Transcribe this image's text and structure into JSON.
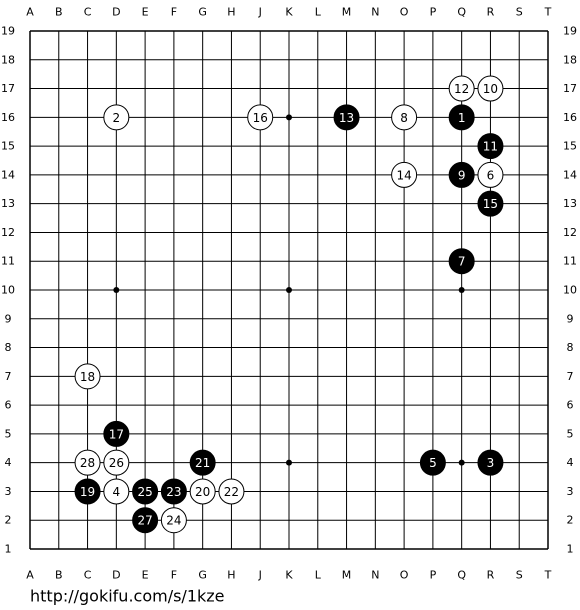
{
  "board": {
    "columns": [
      "A",
      "B",
      "C",
      "D",
      "E",
      "F",
      "G",
      "H",
      "J",
      "K",
      "L",
      "M",
      "N",
      "O",
      "P",
      "Q",
      "R",
      "S",
      "T"
    ],
    "rows": [
      19,
      18,
      17,
      16,
      15,
      14,
      13,
      12,
      11,
      10,
      9,
      8,
      7,
      6,
      5,
      4,
      3,
      2,
      1
    ],
    "star_points": [
      "D16",
      "K16",
      "Q16",
      "D10",
      "K10",
      "Q10",
      "D4",
      "K4",
      "Q4"
    ],
    "stones": [
      {
        "label": "1",
        "color": "black",
        "point": "Q16"
      },
      {
        "label": "2",
        "color": "white",
        "point": "D16"
      },
      {
        "label": "3",
        "color": "black",
        "point": "R4"
      },
      {
        "label": "4",
        "color": "white",
        "point": "D3"
      },
      {
        "label": "5",
        "color": "black",
        "point": "P4"
      },
      {
        "label": "6",
        "color": "white",
        "point": "R14"
      },
      {
        "label": "7",
        "color": "black",
        "point": "Q11"
      },
      {
        "label": "8",
        "color": "white",
        "point": "O16"
      },
      {
        "label": "9",
        "color": "black",
        "point": "Q14"
      },
      {
        "label": "10",
        "color": "white",
        "point": "R17"
      },
      {
        "label": "11",
        "color": "black",
        "point": "R15"
      },
      {
        "label": "12",
        "color": "white",
        "point": "Q17"
      },
      {
        "label": "13",
        "color": "black",
        "point": "M16"
      },
      {
        "label": "14",
        "color": "white",
        "point": "O14"
      },
      {
        "label": "15",
        "color": "black",
        "point": "R13"
      },
      {
        "label": "16",
        "color": "white",
        "point": "J16"
      },
      {
        "label": "17",
        "color": "black",
        "point": "D5"
      },
      {
        "label": "18",
        "color": "white",
        "point": "C7"
      },
      {
        "label": "19",
        "color": "black",
        "point": "C3"
      },
      {
        "label": "20",
        "color": "white",
        "point": "G3"
      },
      {
        "label": "21",
        "color": "black",
        "point": "G4"
      },
      {
        "label": "22",
        "color": "white",
        "point": "H3"
      },
      {
        "label": "23",
        "color": "black",
        "point": "F3"
      },
      {
        "label": "24",
        "color": "white",
        "point": "F2"
      },
      {
        "label": "25",
        "color": "black",
        "point": "E3"
      },
      {
        "label": "26",
        "color": "white",
        "point": "D4"
      },
      {
        "label": "27",
        "color": "black",
        "point": "E2"
      },
      {
        "label": "28",
        "color": "white",
        "point": "C4"
      }
    ]
  },
  "footer": {
    "url": "http://gokifu.com/s/1kze"
  }
}
